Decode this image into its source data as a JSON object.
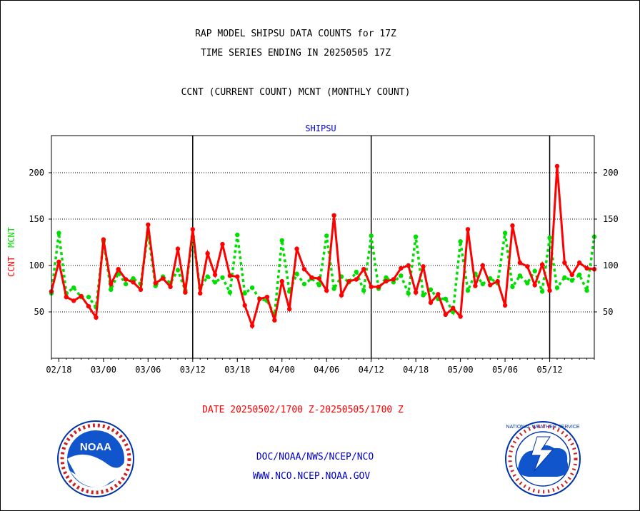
{
  "header": {
    "title_line1": "RAP MODEL SHIPSU DATA COUNTS for 17Z",
    "title_line2": "TIME SERIES ENDING IN 20250505 17Z",
    "subtitle": "CCNT (CURRENT COUNT) MCNT (MONTHLY COUNT)"
  },
  "footer": {
    "date_range": "DATE 20250502/1700 Z-20250505/1700 Z",
    "org_line": "DOC/NOAA/NWS/NCEP/NCO",
    "url_line": "WWW.NCO.NCEP.NOAA.GOV",
    "noaa_logo_text": "NOAA",
    "nws_logo_text": "NATIONAL WEATHER SERVICE"
  },
  "colors": {
    "ccnt": "#ff0000",
    "mcnt": "#00dd00",
    "axis": "#000000",
    "title": "#000000",
    "label_blue": "#0000cc",
    "date_red": "#ff0000"
  },
  "chart_data": {
    "type": "line",
    "title": "SHIPSU",
    "ylabel_ccnt": "CCNT",
    "ylabel_mcnt": "MCNT",
    "xlabel": "",
    "ylim": [
      0,
      240
    ],
    "yticks": [
      50,
      100,
      150,
      200
    ],
    "grid": true,
    "x_ticks": [
      {
        "label": "02/18",
        "index": 1
      },
      {
        "label": "03/00",
        "index": 7
      },
      {
        "label": "03/06",
        "index": 13
      },
      {
        "label": "03/12",
        "index": 19
      },
      {
        "label": "03/18",
        "index": 25
      },
      {
        "label": "04/00",
        "index": 31
      },
      {
        "label": "04/06",
        "index": 37
      },
      {
        "label": "04/12",
        "index": 43
      },
      {
        "label": "04/18",
        "index": 49
      },
      {
        "label": "05/00",
        "index": 55
      },
      {
        "label": "05/06",
        "index": 61
      },
      {
        "label": "05/12",
        "index": 67
      }
    ],
    "day_boundaries": [
      19,
      43,
      67
    ],
    "series": [
      {
        "name": "CCNT",
        "values": [
          72,
          104,
          66,
          62,
          67,
          56,
          44,
          128,
          80,
          96,
          85,
          82,
          74,
          144,
          81,
          86,
          77,
          118,
          71,
          139,
          70,
          113,
          90,
          123,
          89,
          88,
          57,
          35,
          64,
          66,
          41,
          83,
          53,
          118,
          96,
          87,
          86,
          73,
          154,
          68,
          83,
          85,
          96,
          77,
          77,
          83,
          85,
          97,
          100,
          71,
          99,
          60,
          69,
          47,
          54,
          45,
          139,
          78,
          100,
          79,
          83,
          57,
          143,
          103,
          99,
          79,
          101,
          73,
          207,
          103,
          90,
          103,
          97,
          96
        ]
      },
      {
        "name": "MCNT",
        "values": [
          70,
          135,
          70,
          76,
          66,
          66,
          55,
          126,
          74,
          92,
          80,
          86,
          80,
          135,
          78,
          88,
          81,
          95,
          73,
          131,
          76,
          88,
          82,
          87,
          71,
          133,
          70,
          76,
          64,
          62,
          47,
          127,
          72,
          91,
          80,
          86,
          79,
          132,
          75,
          88,
          82,
          93,
          73,
          132,
          75,
          87,
          82,
          89,
          70,
          131,
          68,
          74,
          64,
          64,
          50,
          126,
          73,
          91,
          80,
          86,
          81,
          135,
          77,
          89,
          81,
          94,
          72,
          130,
          76,
          87,
          84,
          90,
          73,
          131
        ]
      }
    ]
  }
}
